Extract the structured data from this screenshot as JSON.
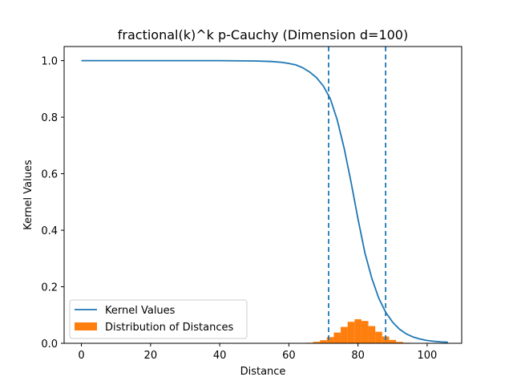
{
  "chart_data": {
    "type": "line",
    "title": "fractional(k)^k  p-Cauchy (Dimension d=100)",
    "xlabel": "Distance",
    "ylabel": "Kernel Values",
    "xlim": [
      -5,
      110
    ],
    "ylim": [
      0,
      1.05
    ],
    "x_ticks": [
      0,
      20,
      40,
      60,
      80,
      100
    ],
    "y_ticks": [
      0.0,
      0.2,
      0.4,
      0.6,
      0.8,
      1.0
    ],
    "x_tick_labels": [
      "0",
      "20",
      "40",
      "60",
      "80",
      "100"
    ],
    "y_tick_labels": [
      "0.0",
      "0.2",
      "0.4",
      "0.6",
      "0.8",
      "1.0"
    ],
    "grid": false,
    "legend_position": "lower-left",
    "series": [
      {
        "name": "Kernel Values",
        "kind": "line",
        "color": "#1f77b4",
        "x": [
          0,
          10,
          20,
          30,
          40,
          50,
          55,
          58,
          60,
          62,
          64,
          66,
          68,
          70,
          72,
          74,
          76,
          78,
          80,
          82,
          84,
          86,
          88,
          90,
          92,
          94,
          96,
          98,
          100,
          102,
          104,
          106
        ],
        "y": [
          1.0,
          1.0,
          1.0,
          1.0,
          1.0,
          0.999,
          0.997,
          0.994,
          0.99,
          0.985,
          0.975,
          0.96,
          0.94,
          0.91,
          0.865,
          0.79,
          0.69,
          0.57,
          0.44,
          0.32,
          0.23,
          0.16,
          0.11,
          0.075,
          0.05,
          0.033,
          0.022,
          0.015,
          0.01,
          0.007,
          0.005,
          0.004
        ]
      },
      {
        "name": "Distribution of Distances",
        "kind": "histogram",
        "color": "#ff7f0e",
        "x": [
          66,
          68,
          70,
          72,
          74,
          76,
          78,
          80,
          82,
          84,
          86,
          88,
          90,
          92,
          94
        ],
        "y": [
          0.002,
          0.005,
          0.011,
          0.022,
          0.038,
          0.058,
          0.076,
          0.085,
          0.079,
          0.061,
          0.041,
          0.024,
          0.012,
          0.005,
          0.002
        ]
      }
    ],
    "vlines": [
      {
        "x": 71.5,
        "color": "#1f77b4",
        "style": "dashed"
      },
      {
        "x": 88,
        "color": "#1f77b4",
        "style": "dashed"
      }
    ]
  }
}
